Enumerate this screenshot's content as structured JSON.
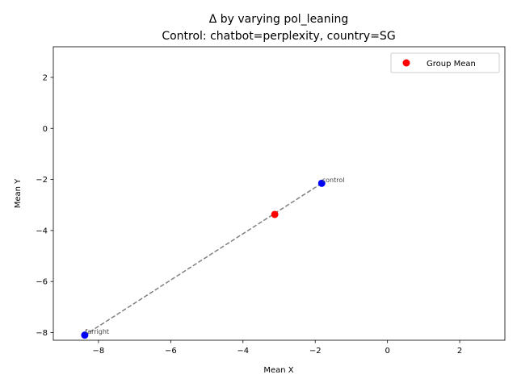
{
  "chart_data": {
    "type": "scatter",
    "title": "Δ by varying pol_leaning",
    "subtitle": "Control: chatbot=perplexity, country=SG",
    "xlabel": "Mean X",
    "ylabel": "Mean Y",
    "xlim": [
      -9.25,
      3.25
    ],
    "ylim": [
      -8.3,
      3.2
    ],
    "xticks": [
      -8,
      -6,
      -4,
      -2,
      0,
      2
    ],
    "yticks": [
      -8,
      -6,
      -4,
      -2,
      0,
      2
    ],
    "grid": false,
    "legend": {
      "position": "top-right",
      "entries": [
        {
          "label": "Group Mean",
          "color": "#ff0000"
        }
      ]
    },
    "points": [
      {
        "label": "control",
        "x": -1.82,
        "y": -2.15,
        "color": "#0000ff"
      },
      {
        "label": "farright",
        "x": -8.38,
        "y": -8.1,
        "color": "#0000ff"
      }
    ],
    "group_mean": {
      "x": -3.12,
      "y": -3.37,
      "color": "#ff0000"
    },
    "connector": {
      "style": "dashed",
      "color": "#808080"
    }
  }
}
